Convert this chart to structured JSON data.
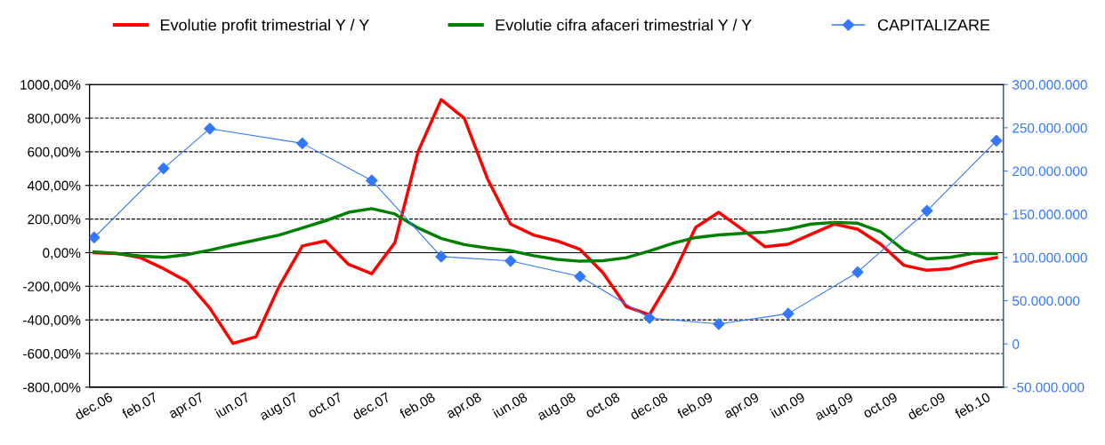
{
  "chart_data": {
    "type": "line",
    "legend": "top",
    "grid": "y",
    "categories": [
      "dec.06",
      null,
      "feb.07",
      null,
      "apr.07",
      null,
      "iun.07",
      null,
      "aug.07",
      null,
      "oct.07",
      null,
      "dec.07",
      null,
      "feb.08",
      null,
      "apr.08",
      null,
      "iun.08",
      null,
      "aug.08",
      null,
      "oct.08",
      null,
      "dec.08",
      null,
      "feb.09",
      null,
      "apr.09",
      null,
      "iun.09",
      null,
      "aug.09",
      null,
      "oct.09",
      null,
      "dec.09",
      null,
      "feb.10",
      null
    ],
    "ylim": [
      -800,
      1000
    ],
    "yticks": [
      {
        "value": -800,
        "label": "-800,00%"
      },
      {
        "value": -600,
        "label": "-600,00%"
      },
      {
        "value": -400,
        "label": "-400,00%"
      },
      {
        "value": -200,
        "label": "-200,00%"
      },
      {
        "value": 0,
        "label": "0,00%"
      },
      {
        "value": 200,
        "label": "200,00%"
      },
      {
        "value": 400,
        "label": "400,00%"
      },
      {
        "value": 600,
        "label": "600,00%"
      },
      {
        "value": 800,
        "label": "800,00%"
      },
      {
        "value": 1000,
        "label": "1000,00%"
      }
    ],
    "y2lim": [
      -50000000,
      300000000
    ],
    "y2ticks": [
      {
        "value": -50000000,
        "label": "-50.000.000"
      },
      {
        "value": 0,
        "label": "0"
      },
      {
        "value": 50000000,
        "label": "50.000.000"
      },
      {
        "value": 100000000,
        "label": "100.000.000"
      },
      {
        "value": 150000000,
        "label": "150.000.000"
      },
      {
        "value": 200000000,
        "label": "200.000.000"
      },
      {
        "value": 250000000,
        "label": "250.000.000"
      },
      {
        "value": 300000000,
        "label": "300.000.000"
      }
    ],
    "series": [
      {
        "name": "Evolutie profit trimestrial Y / Y",
        "color": "#ff0000",
        "marker": "none",
        "values": [
          0,
          -5,
          -30,
          -95,
          -170,
          -330,
          -540,
          -500,
          -200,
          40,
          70,
          -70,
          -125,
          60,
          600,
          910,
          800,
          440,
          170,
          105,
          70,
          20,
          -120,
          -320,
          -370,
          -140,
          150,
          240,
          140,
          35,
          50,
          110,
          170,
          140,
          50,
          -75,
          -105,
          -95,
          -55,
          -30
        ]
      },
      {
        "name": "Evolutie cifra afaceri trimestrial Y / Y",
        "color": "#008000",
        "marker": "none",
        "values": [
          5,
          -5,
          -20,
          -28,
          -12,
          15,
          46,
          75,
          105,
          147,
          190,
          240,
          262,
          230,
          147,
          85,
          48,
          28,
          12,
          -18,
          -40,
          -51,
          -48,
          -30,
          10,
          55,
          90,
          105,
          115,
          122,
          140,
          170,
          180,
          175,
          124,
          15,
          -37,
          -28,
          -5,
          -5
        ]
      },
      {
        "name": "CAPITALIZARE",
        "color": "#3377ff",
        "marker": "diamond",
        "axis": "y2",
        "values": [
          123000000,
          null,
          null,
          203000000,
          null,
          249000000,
          null,
          null,
          null,
          232000000,
          null,
          null,
          189000000,
          null,
          null,
          101000000,
          null,
          null,
          96000000,
          null,
          null,
          78000000,
          null,
          null,
          30000000,
          null,
          null,
          23000000,
          null,
          null,
          35000000,
          null,
          null,
          83000000,
          null,
          null,
          154000000,
          null,
          null,
          235000000
        ]
      }
    ]
  }
}
